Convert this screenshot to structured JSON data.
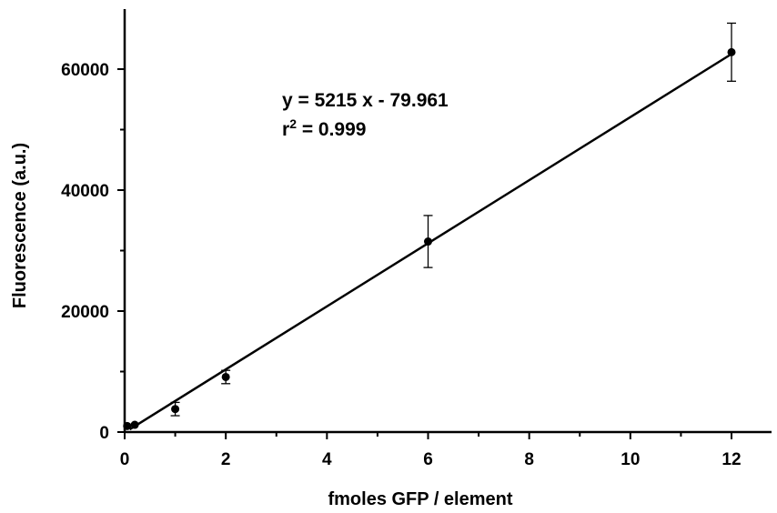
{
  "chart_data": {
    "type": "scatter",
    "xlabel": "fmoles GFP / element",
    "ylabel": "Fluorescence (a.u.)",
    "xlim": [
      0,
      13
    ],
    "ylim": [
      0,
      70000
    ],
    "x_ticks": [
      0,
      2,
      4,
      6,
      8,
      10,
      12
    ],
    "y_ticks": [
      0,
      20000,
      40000,
      60000
    ],
    "x_tick_labels": [
      "0",
      "2",
      "4",
      "6",
      "8",
      "10",
      "12"
    ],
    "y_tick_labels": [
      "0",
      "20000",
      "40000",
      "60000"
    ],
    "grid": false,
    "series": [
      {
        "points": [
          {
            "x": 0.05,
            "y": 1000,
            "err": 0
          },
          {
            "x": 0.2,
            "y": 1200,
            "err": 0
          },
          {
            "x": 1,
            "y": 3800,
            "err": 1100
          },
          {
            "x": 2,
            "y": 9100,
            "err": 1100
          },
          {
            "x": 6,
            "y": 31500,
            "err": 4300
          },
          {
            "x": 12,
            "y": 62800,
            "err": 4800
          }
        ]
      }
    ],
    "fit": {
      "slope": 5215,
      "intercept": -79.961,
      "x_range": [
        0.1,
        12
      ]
    },
    "annotations": {
      "equation": "y = 5215 x - 79.961",
      "r2_prefix": "r",
      "r2_sup": "2",
      "r2_suffix": " = 0.999"
    }
  }
}
